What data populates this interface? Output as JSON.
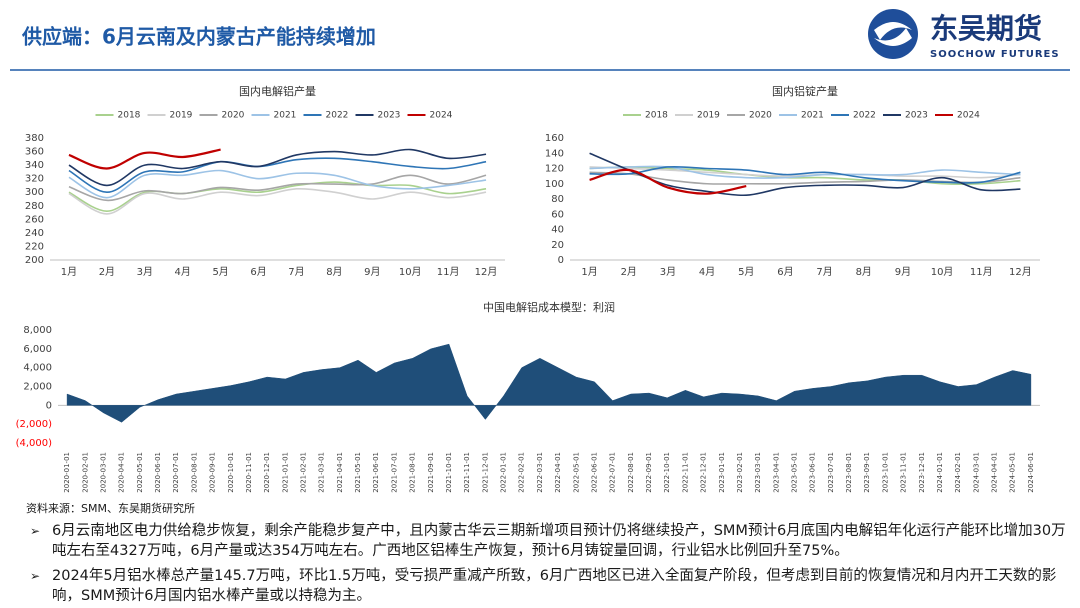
{
  "header": {
    "title": "供应端：6月云南及内蒙古产能持续增加",
    "logo_cn": "东吴期货",
    "logo_en": "SOOCHOW FUTURES"
  },
  "chart_data": [
    {
      "type": "line",
      "title": "国内电解铝产量",
      "categories": [
        "1月",
        "2月",
        "3月",
        "4月",
        "5月",
        "6月",
        "7月",
        "8月",
        "9月",
        "10月",
        "11月",
        "12月"
      ],
      "ylim": [
        200,
        380
      ],
      "yticks": [
        200,
        220,
        240,
        260,
        280,
        300,
        320,
        340,
        360,
        380
      ],
      "grid": false,
      "series": [
        {
          "name": "2018",
          "color": "#a9d18e",
          "values": [
            300,
            272,
            300,
            298,
            305,
            300,
            310,
            315,
            310,
            310,
            298,
            305
          ]
        },
        {
          "name": "2019",
          "color": "#d0d0d0",
          "values": [
            298,
            268,
            298,
            290,
            300,
            295,
            305,
            300,
            290,
            300,
            292,
            300
          ]
        },
        {
          "name": "2020",
          "color": "#a6a6a6",
          "values": [
            308,
            288,
            302,
            298,
            307,
            303,
            312,
            312,
            312,
            325,
            312,
            325
          ]
        },
        {
          "name": "2021",
          "color": "#9dc3e6",
          "values": [
            322,
            292,
            325,
            325,
            332,
            320,
            328,
            325,
            310,
            305,
            310,
            318
          ]
        },
        {
          "name": "2022",
          "color": "#2e75b6",
          "values": [
            332,
            300,
            330,
            330,
            345,
            338,
            348,
            350,
            345,
            338,
            335,
            345
          ]
        },
        {
          "name": "2023",
          "color": "#203864",
          "values": [
            340,
            310,
            340,
            335,
            345,
            338,
            355,
            360,
            355,
            363,
            350,
            356
          ]
        },
        {
          "name": "2024",
          "color": "#c00000",
          "values": [
            355,
            335,
            358,
            352,
            363,
            null,
            null,
            null,
            null,
            null,
            null,
            null
          ]
        }
      ]
    },
    {
      "type": "line",
      "title": "国内铝锭产量",
      "categories": [
        "1月",
        "2月",
        "3月",
        "4月",
        "5月",
        "6月",
        "7月",
        "8月",
        "9月",
        "10月",
        "11月",
        "12月"
      ],
      "ylim": [
        0,
        160
      ],
      "yticks": [
        0,
        20,
        40,
        60,
        80,
        100,
        120,
        140,
        160
      ],
      "grid": false,
      "series": [
        {
          "name": "2018",
          "color": "#a9d18e",
          "values": [
            120,
            122,
            120,
            118,
            112,
            108,
            108,
            105,
            105,
            100,
            100,
            104
          ]
        },
        {
          "name": "2019",
          "color": "#d0d0d0",
          "values": [
            122,
            120,
            118,
            115,
            112,
            110,
            112,
            112,
            110,
            110,
            108,
            112
          ]
        },
        {
          "name": "2020",
          "color": "#a6a6a6",
          "values": [
            115,
            113,
            105,
            100,
            100,
            100,
            102,
            103,
            105,
            103,
            102,
            108
          ]
        },
        {
          "name": "2021",
          "color": "#9dc3e6",
          "values": [
            120,
            122,
            122,
            112,
            108,
            108,
            112,
            112,
            112,
            118,
            115,
            112
          ]
        },
        {
          "name": "2022",
          "color": "#2e75b6",
          "values": [
            113,
            113,
            122,
            120,
            118,
            112,
            115,
            108,
            104,
            102,
            102,
            115
          ]
        },
        {
          "name": "2023",
          "color": "#203864",
          "values": [
            140,
            118,
            98,
            90,
            85,
            95,
            98,
            98,
            95,
            108,
            92,
            93
          ]
        },
        {
          "name": "2024",
          "color": "#c00000",
          "values": [
            105,
            118,
            95,
            87,
            97,
            null,
            null,
            null,
            null,
            null,
            null,
            null
          ]
        }
      ]
    },
    {
      "type": "area",
      "title": "中国电解铝成本模型：利润",
      "color": "#1f4e79",
      "negative_label_color": "#ff0000",
      "categories": [
        "2020-01-01",
        "2020-02-01",
        "2020-03-01",
        "2020-04-01",
        "2020-05-01",
        "2020-06-01",
        "2020-07-01",
        "2020-08-01",
        "2020-09-01",
        "2020-10-01",
        "2020-11-01",
        "2020-12-01",
        "2021-01-01",
        "2021-02-01",
        "2021-03-01",
        "2021-04-01",
        "2021-05-01",
        "2021-06-01",
        "2021-07-01",
        "2021-08-01",
        "2021-09-01",
        "2021-10-01",
        "2021-11-01",
        "2021-12-01",
        "2022-01-01",
        "2022-02-01",
        "2022-03-01",
        "2022-04-01",
        "2022-05-01",
        "2022-06-01",
        "2022-07-01",
        "2022-08-01",
        "2022-09-01",
        "2022-10-01",
        "2022-11-01",
        "2022-12-01",
        "2023-01-01",
        "2023-02-01",
        "2023-03-01",
        "2023-04-01",
        "2023-05-01",
        "2023-06-01",
        "2023-07-01",
        "2023-08-01",
        "2023-09-01",
        "2023-10-01",
        "2023-11-01",
        "2023-12-01",
        "2024-01-01",
        "2024-02-01",
        "2024-03-01",
        "2024-04-01",
        "2024-05-01",
        "2024-06-01"
      ],
      "values": [
        1200,
        500,
        -800,
        -1800,
        -200,
        600,
        1200,
        1500,
        1800,
        2100,
        2500,
        3000,
        2800,
        3500,
        3800,
        4000,
        4800,
        3500,
        4500,
        5000,
        6000,
        6500,
        1000,
        -1500,
        1000,
        4000,
        5000,
        4000,
        3000,
        2500,
        500,
        1200,
        1300,
        800,
        1600,
        900,
        1300,
        1200,
        1000,
        500,
        1500,
        1800,
        2000,
        2400,
        2600,
        3000,
        3200,
        3200,
        2500,
        2000,
        2200,
        3000,
        3700,
        3300
      ],
      "ylim": [
        -4000,
        8000
      ],
      "yticks": [
        {
          "value": -4000,
          "label": "(4,000)"
        },
        {
          "value": -2000,
          "label": "(2,000)"
        },
        0,
        {
          "value": 2000,
          "label": "2,000"
        },
        {
          "value": 4000,
          "label": "4,000"
        },
        {
          "value": 6000,
          "label": "6,000"
        },
        {
          "value": 8000,
          "label": "8,000"
        }
      ],
      "grid": false
    }
  ],
  "source": "资料来源：SMM、东吴期货研究所",
  "bullets": [
    "6月云南地区电力供给稳步恢复，剩余产能稳步复产中，且内蒙古华云三期新增项目预计仍将继续投产，SMM预计6月底国内电解铝年化运行产能环比增加30万吨左右至4327万吨，6月产量或达354万吨左右。广西地区铝棒生产恢复，预计6月铸锭量回调，行业铝水比例回升至75%。",
    "2024年5月铝水棒总产量145.7万吨，环比1.5万吨，受亏损严重减产所致，6月广西地区已进入全面复产阶段，但考虑到目前的恢复情况和月内开工天数的影响，SMM预计6月国内铝水棒产量或以持稳为主。"
  ]
}
